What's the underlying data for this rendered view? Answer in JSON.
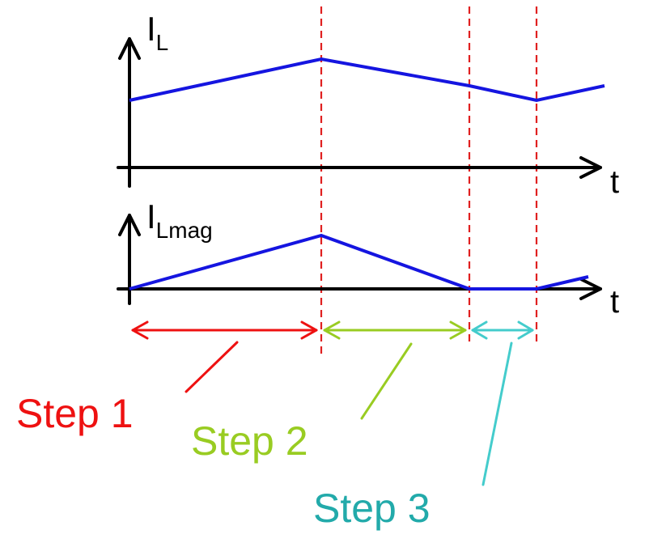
{
  "plots": {
    "top": {
      "ylabel_main": "I",
      "ylabel_sub": "L",
      "xlabel": "t"
    },
    "bottom": {
      "ylabel_main": "I",
      "ylabel_sub": "Lmag",
      "xlabel": "t"
    }
  },
  "steps": [
    {
      "label": "Step 1",
      "color": "#ee1111"
    },
    {
      "label": "Step 2",
      "color": "#99cc22"
    },
    {
      "label": "Step 3",
      "color": "#22aaaa"
    }
  ],
  "colors": {
    "axis": "#000000",
    "waveform": "#1515e0",
    "boundary": "#e02020",
    "step3_arrow": "#44cccc"
  }
}
